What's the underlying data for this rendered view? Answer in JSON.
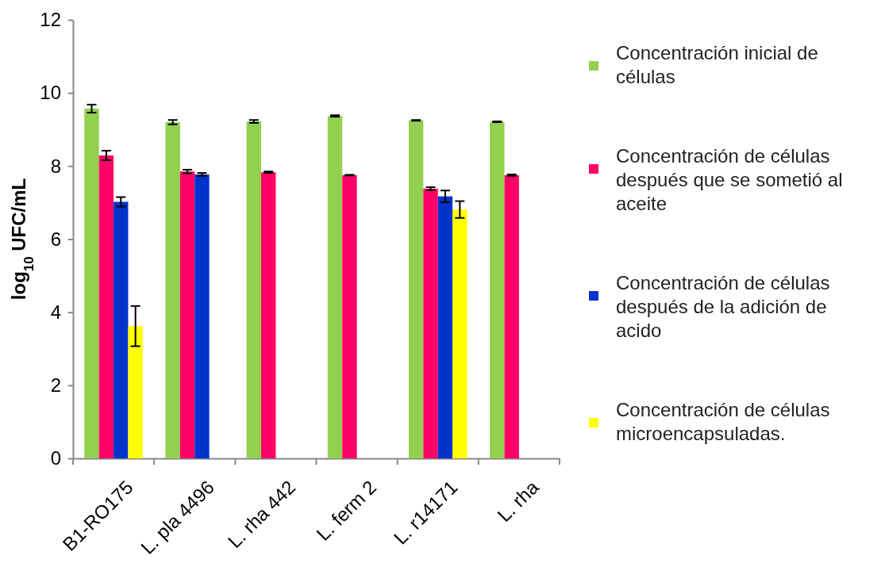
{
  "chart_data": {
    "type": "bar",
    "ylabel": "log$_{10}$ UFC/mL",
    "categories": [
      "B1-RO175",
      "L. pla 4496",
      "L. rha 442",
      "L. ferm 2",
      "L. r14171",
      "L. rha"
    ],
    "ylim": [
      0,
      12
    ],
    "yticks": [
      0,
      2,
      4,
      6,
      8,
      10,
      12
    ],
    "grid": false,
    "legend": "right",
    "series": [
      {
        "name": "Concentración inicial de células",
        "color": "#92d050",
        "values": [
          9.57,
          9.2,
          9.22,
          9.37,
          9.25,
          9.21
        ],
        "errors": [
          0.11,
          0.06,
          0.04,
          0.02,
          0.01,
          0.01
        ]
      },
      {
        "name": "Concentración de células después que se sometió al aceite",
        "color": "#ff0066",
        "values": [
          8.29,
          7.85,
          7.83,
          7.75,
          7.38,
          7.75
        ],
        "errors": [
          0.13,
          0.05,
          0.02,
          0.01,
          0.04,
          0.02
        ]
      },
      {
        "name": "Concentración de células después de la adición de acido",
        "color": "#0033cc",
        "values": [
          7.02,
          7.77,
          null,
          null,
          7.17,
          null
        ],
        "errors": [
          0.13,
          0.04,
          null,
          null,
          0.16,
          null
        ]
      },
      {
        "name": "Concentración de células microencapsuladas.",
        "color": "#ffff00",
        "values": [
          3.62,
          null,
          null,
          null,
          6.81,
          null
        ],
        "errors": [
          0.55,
          null,
          null,
          null,
          0.23,
          null
        ]
      }
    ]
  }
}
